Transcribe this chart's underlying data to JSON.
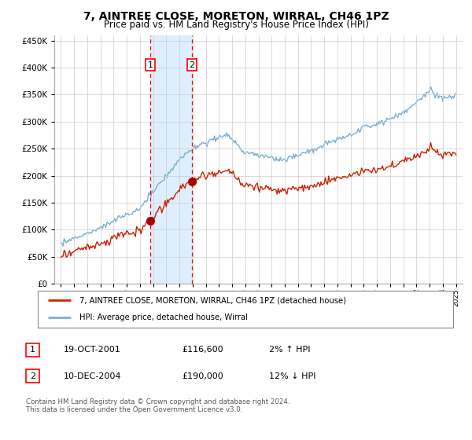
{
  "title": "7, AINTREE CLOSE, MORETON, WIRRAL, CH46 1PZ",
  "subtitle": "Price paid vs. HM Land Registry's House Price Index (HPI)",
  "legend_entry1": "7, AINTREE CLOSE, MORETON, WIRRAL, CH46 1PZ (detached house)",
  "legend_entry2": "HPI: Average price, detached house, Wirral",
  "transaction1_label": "1",
  "transaction1_date": "19-OCT-2001",
  "transaction1_price": "£116,600",
  "transaction1_hpi": "2% ↑ HPI",
  "transaction1_x": 2001.8,
  "transaction1_y": 116600,
  "transaction2_label": "2",
  "transaction2_date": "10-DEC-2004",
  "transaction2_price": "£190,000",
  "transaction2_hpi": "12% ↓ HPI",
  "transaction2_x": 2004.95,
  "transaction2_y": 190000,
  "ylim": [
    0,
    460000
  ],
  "xlim": [
    1994.5,
    2025.5
  ],
  "yticks": [
    0,
    50000,
    100000,
    150000,
    200000,
    250000,
    300000,
    350000,
    400000,
    450000
  ],
  "xticks": [
    1995,
    1996,
    1997,
    1998,
    1999,
    2000,
    2001,
    2002,
    2003,
    2004,
    2005,
    2006,
    2007,
    2008,
    2009,
    2010,
    2011,
    2012,
    2013,
    2014,
    2015,
    2016,
    2017,
    2018,
    2019,
    2020,
    2021,
    2022,
    2023,
    2024,
    2025
  ],
  "hpi_color": "#7bafd4",
  "price_color": "#cc2200",
  "marker_color": "#aa0000",
  "shade_color": "#ddeeff",
  "grid_color": "#cccccc",
  "background_color": "#ffffff",
  "copyright_text": "Contains HM Land Registry data © Crown copyright and database right 2024.\nThis data is licensed under the Open Government Licence v3.0.",
  "footnote_rows": [
    [
      "1",
      "19-OCT-2001",
      "£116,600",
      "2% ↑ HPI"
    ],
    [
      "2",
      "10-DEC-2004",
      "£190,000",
      "12% ↓ HPI"
    ]
  ]
}
